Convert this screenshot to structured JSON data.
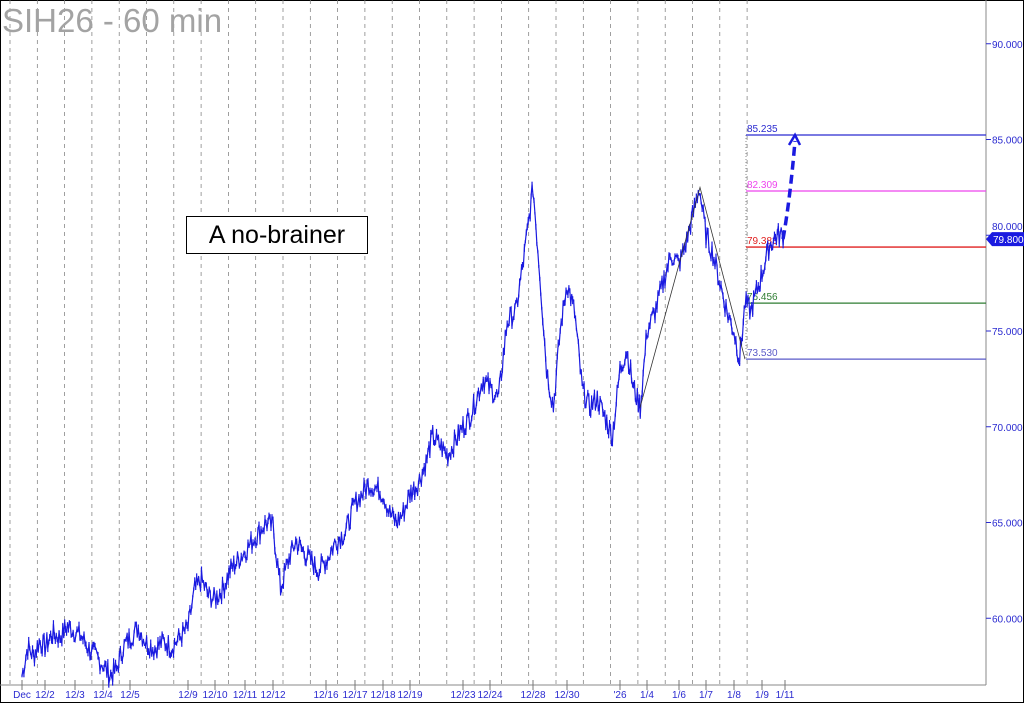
{
  "title": "SIH26 - 60 min",
  "annotation": "A no-brainer",
  "chart_data": {
    "type": "line",
    "title": "SIH26 - 60 min",
    "xlabel": "",
    "ylabel": "",
    "ylim": [
      56.2,
      92
    ],
    "y_ticks": [
      "60.000",
      "65.000",
      "70.000",
      "75.000",
      "80.000",
      "85.000",
      "90.000"
    ],
    "x_ticks": [
      "Dec",
      "12/2",
      "12/3",
      "12/4",
      "12/5",
      "12/9",
      "12/10",
      "12/11",
      "12/12",
      "12/16",
      "12/17",
      "12/18",
      "12/19",
      "12/23",
      "12/24",
      "12/28",
      "12/30",
      "'26",
      "1/4",
      "1/6",
      "1/7",
      "1/8",
      "1/9",
      "1/11"
    ],
    "grid": "vertical dashed",
    "series_color": "#1a1ae0",
    "price_by_session": [
      {
        "date": "Dec",
        "prices": [
          57,
          58.5,
          58,
          58.8
        ]
      },
      {
        "date": "12/2",
        "prices": [
          58.5,
          59.2,
          59,
          59.6
        ]
      },
      {
        "date": "12/3",
        "prices": [
          59.3,
          59,
          58.4,
          58
        ]
      },
      {
        "date": "12/4",
        "prices": [
          57.6,
          57,
          57.3,
          58.5
        ]
      },
      {
        "date": "12/5",
        "prices": [
          59,
          59.5,
          58.7,
          58.4,
          58.8,
          58.5,
          59
        ]
      },
      {
        "date": "12/9",
        "prices": [
          59.5,
          61.5,
          62,
          61.2
        ]
      },
      {
        "date": "12/10",
        "prices": [
          61,
          61.5,
          62.5,
          63
        ]
      },
      {
        "date": "12/11",
        "prices": [
          63.5,
          64,
          64.5,
          65
        ]
      },
      {
        "date": "12/12",
        "prices": [
          64.8,
          61.5,
          63,
          64,
          63.5,
          63,
          62.5
        ]
      },
      {
        "date": "12/16",
        "prices": [
          63,
          64,
          64.5
        ]
      },
      {
        "date": "12/17",
        "prices": [
          66,
          66.5,
          67,
          66.8
        ]
      },
      {
        "date": "12/18",
        "prices": [
          66.5,
          65.5,
          65,
          65.5
        ]
      },
      {
        "date": "12/19",
        "prices": [
          66.5,
          67,
          68,
          69.5,
          69,
          68.5,
          69.3
        ]
      },
      {
        "date": "12/23",
        "prices": [
          70,
          70.5,
          71.5,
          72.5
        ]
      },
      {
        "date": "12/24",
        "prices": [
          72,
          71.5,
          75.5,
          76,
          79
        ]
      },
      {
        "date": "12/28",
        "prices": [
          82.5,
          78,
          73,
          71,
          75
        ]
      },
      {
        "date": "12/30",
        "prices": [
          77.5,
          76,
          72,
          71,
          71.5,
          70.5,
          69.5
        ]
      },
      {
        "date": "'26",
        "prices": [
          73,
          74,
          72,
          71
        ]
      },
      {
        "date": "1/4",
        "prices": [
          75,
          76,
          77.5,
          79
        ]
      },
      {
        "date": "1/6",
        "prices": [
          78.5,
          79.5,
          81,
          82.5
        ]
      },
      {
        "date": "1/7",
        "prices": [
          80,
          79,
          77.5,
          76
        ]
      },
      {
        "date": "1/8",
        "prices": [
          75,
          73.5,
          76.5,
          76,
          77
        ]
      },
      {
        "date": "1/9",
        "prices": [
          78,
          79.5,
          80
        ]
      }
    ],
    "last_price": "79.800",
    "pattern_points": [
      71,
      82.5,
      73.53
    ],
    "levels": [
      {
        "label": "85.235",
        "value": 85.235,
        "color": "#2a2ad0"
      },
      {
        "label": "82.309",
        "value": 82.309,
        "color": "#ee44ee"
      },
      {
        "label": "79.383",
        "value": 79.383,
        "color": "#e02020"
      },
      {
        "label": "76.456",
        "value": 76.456,
        "color": "#2e7d32"
      },
      {
        "label": "73.530",
        "value": 73.53,
        "color": "#5a5ac8"
      }
    ],
    "projection_target": 85.235
  }
}
